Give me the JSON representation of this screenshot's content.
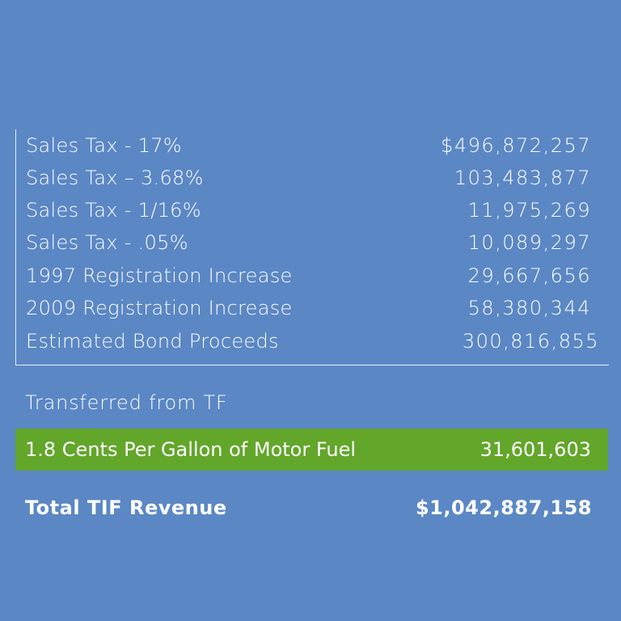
{
  "table": {
    "rows": [
      {
        "label": "Sales Tax - 17%",
        "value": "$496,872,257"
      },
      {
        "label": "Sales Tax – 3.68%",
        "value": "103,483,877"
      },
      {
        "label": "Sales Tax -  1/16%",
        "value": "11,975,269"
      },
      {
        "label": "Sales Tax - .05%",
        "value": "10,089,297"
      },
      {
        "label": "1997 Registration Increase",
        "value": "29,667,656"
      },
      {
        "label": "2009 Registration Increase",
        "value": "58,380,344"
      },
      {
        "label": "Estimated Bond Proceeds",
        "value": "300,816,855"
      }
    ]
  },
  "transferred": {
    "heading": "Transferred from TF",
    "row": {
      "label": "1.8 Cents Per Gallon of Motor Fuel",
      "value": "31,601,603"
    }
  },
  "total": {
    "label": "Total TIF Revenue",
    "value": "$1,042,887,158"
  },
  "colors": {
    "background": "#5B87C5",
    "highlight": "#62A62A",
    "text": "#FFFFFF"
  }
}
